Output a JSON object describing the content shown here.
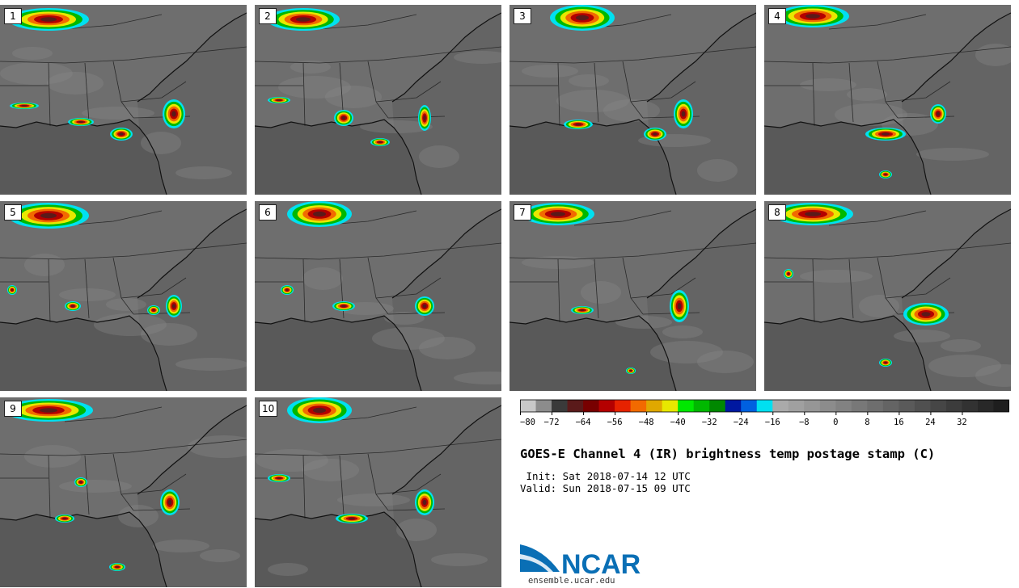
{
  "panels": [
    {
      "label": "1"
    },
    {
      "label": "2"
    },
    {
      "label": "3"
    },
    {
      "label": "4"
    },
    {
      "label": "5"
    },
    {
      "label": "6"
    },
    {
      "label": "7"
    },
    {
      "label": "8"
    },
    {
      "label": "9"
    },
    {
      "label": "10"
    }
  ],
  "colorbar": {
    "colors": [
      "#c8c8c8",
      "#8c8c8c",
      "#3a3a3a",
      "#5a1a1a",
      "#780000",
      "#b40000",
      "#e62200",
      "#f26a00",
      "#e0a800",
      "#e8e800",
      "#00e800",
      "#00b800",
      "#008800",
      "#0018a0",
      "#0060e0",
      "#00e0f0",
      "#aaaaaa",
      "#a0a0a0",
      "#969696",
      "#8c8c8c",
      "#828282",
      "#787878",
      "#6e6e6e",
      "#646464",
      "#5a5a5a",
      "#505050",
      "#464646",
      "#3c3c3c",
      "#323232",
      "#282828",
      "#1e1e1e"
    ],
    "ticks": [
      "-80",
      "-72",
      "-64",
      "-56",
      "-48",
      "-40",
      "-32",
      "-24",
      "-16",
      "-8",
      "0",
      "8",
      "16",
      "24",
      "32"
    ]
  },
  "title": "GOES-E Channel 4 (IR) brightness temp postage stamp (C)",
  "init": " Init: Sat 2018-07-14 12 UTC",
  "valid": "Valid: Sun 2018-07-15 09 UTC",
  "logo": {
    "text": "NCAR",
    "url": "ensemble.ucar.edu",
    "color": "#0a6fb5"
  }
}
